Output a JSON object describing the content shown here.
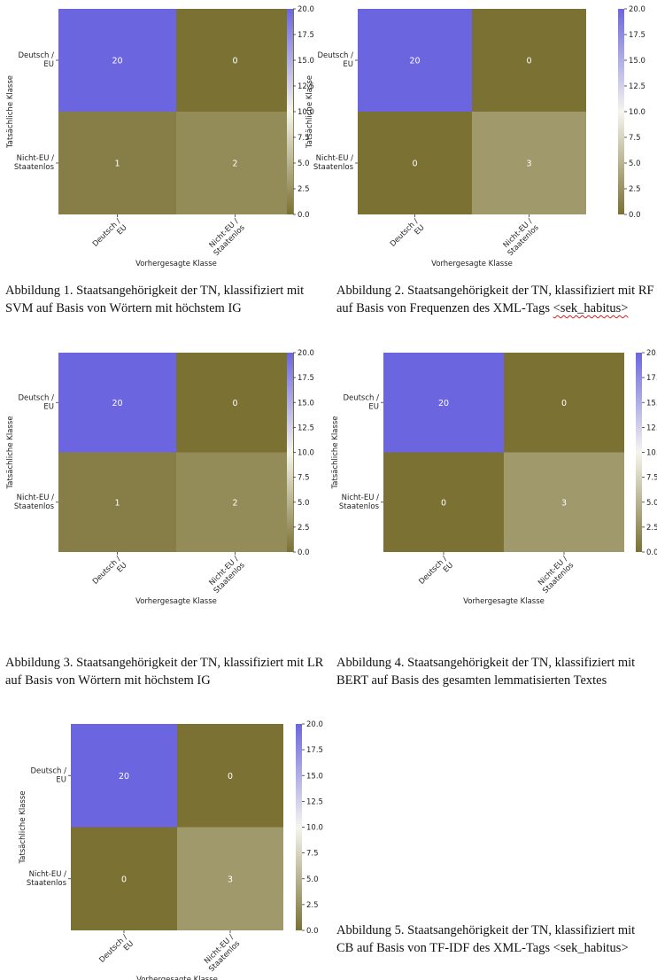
{
  "chart_data": [
    {
      "type": "heatmap",
      "title": "",
      "xlabel": "Vorhergesagte Klasse",
      "ylabel": "Tatsächliche Klasse",
      "x_categories": [
        [
          "Deutsch /",
          "EU"
        ],
        [
          "Nicht-EU /",
          "Staatenlos"
        ]
      ],
      "y_categories": [
        [
          "Deutsch /",
          "EU"
        ],
        [
          "Nicht-EU /",
          "Staatenlos"
        ]
      ],
      "values": [
        [
          20,
          0
        ],
        [
          1,
          2
        ]
      ],
      "colorbar": {
        "range": [
          0,
          20
        ],
        "ticks": [
          "0.0",
          "2.5",
          "5.0",
          "7.5",
          "10.0",
          "12.5",
          "15.0",
          "17.5",
          "20.0"
        ]
      }
    },
    {
      "type": "heatmap",
      "title": "",
      "xlabel": "Vorhergesagte Klasse",
      "ylabel": "Tatsächliche Klasse",
      "x_categories": [
        [
          "Deutsch /",
          "EU"
        ],
        [
          "Nicht-EU /",
          "Staatenlos"
        ]
      ],
      "y_categories": [
        [
          "Deutsch /",
          "EU"
        ],
        [
          "Nicht-EU /",
          "Staatenlos"
        ]
      ],
      "values": [
        [
          20,
          0
        ],
        [
          0,
          3
        ]
      ],
      "colorbar": {
        "range": [
          0,
          20
        ],
        "ticks": [
          "0.0",
          "2.5",
          "5.0",
          "7.5",
          "10.0",
          "12.5",
          "15.0",
          "17.5",
          "20.0"
        ]
      }
    },
    {
      "type": "heatmap",
      "title": "",
      "xlabel": "Vorhergesagte Klasse",
      "ylabel": "Tatsächliche Klasse",
      "x_categories": [
        [
          "Deutsch /",
          "EU"
        ],
        [
          "Nicht-EU /",
          "Staatenlos"
        ]
      ],
      "y_categories": [
        [
          "Deutsch /",
          "EU"
        ],
        [
          "Nicht-EU /",
          "Staatenlos"
        ]
      ],
      "values": [
        [
          20,
          0
        ],
        [
          1,
          2
        ]
      ],
      "colorbar": {
        "range": [
          0,
          20
        ],
        "ticks": [
          "0.0",
          "2.5",
          "5.0",
          "7.5",
          "10.0",
          "12.5",
          "15.0",
          "17.5",
          "20.0"
        ]
      }
    },
    {
      "type": "heatmap",
      "title": "",
      "xlabel": "Vorhergesagte Klasse",
      "ylabel": "Tatsächliche Klasse",
      "x_categories": [
        [
          "Deutsch /",
          "EU"
        ],
        [
          "Nicht-EU /",
          "Staatenlos"
        ]
      ],
      "y_categories": [
        [
          "Deutsch /",
          "EU"
        ],
        [
          "Nicht-EU /",
          "Staatenlos"
        ]
      ],
      "values": [
        [
          20,
          0
        ],
        [
          0,
          3
        ]
      ],
      "colorbar": {
        "range": [
          0,
          20
        ],
        "ticks": [
          "0.0",
          "2.5",
          "5.0",
          "7.5",
          "10.0",
          "12.5",
          "15.0",
          "17.5",
          "20.0"
        ]
      }
    },
    {
      "type": "heatmap",
      "title": "",
      "xlabel": "Vorhergesagte Klasse",
      "ylabel": "Tatsächliche Klasse",
      "x_categories": [
        [
          "Deutsch /",
          "EU"
        ],
        [
          "Nicht-EU /",
          "Staatenlos"
        ]
      ],
      "y_categories": [
        [
          "Deutsch /",
          "EU"
        ],
        [
          "Nicht-EU /",
          "Staatenlos"
        ]
      ],
      "values": [
        [
          20,
          0
        ],
        [
          0,
          3
        ]
      ],
      "colorbar": {
        "range": [
          0,
          20
        ],
        "ticks": [
          "0.0",
          "2.5",
          "5.0",
          "7.5",
          "10.0",
          "12.5",
          "15.0",
          "17.5",
          "20.0"
        ]
      }
    }
  ],
  "colors": {
    "low": "#7a7133",
    "mid": "#f6f5ee",
    "high": "#6b66e0",
    "text_dark_cell": "#e8e6d6",
    "text_light_cell": "#ffffff",
    "spellcheck_underline": "#d21f1f"
  },
  "captions": [
    {
      "text": "Abbildung 1. Staatsangehörigkeit der TN, klassifiziert mit SVM auf Basis von Wörtern mit höchstem IG"
    },
    {
      "text": "Abbildung 2. Staatsangehörigkeit der TN, klassifiziert mit RF auf Basis von Frequenzen des XML-Tags ",
      "underlined": "<sek_habitus>"
    },
    {
      "text": "Abbildung 3. Staatsangehörigkeit der TN, klassifiziert mit LR auf Basis von Wörtern mit höchstem IG"
    },
    {
      "text": "Abbildung 4. Staatsangehörigkeit der TN, klassifiziert mit BERT auf Basis des gesamten lemmatisierten Textes"
    },
    {
      "text": "Abbildung 5. Staatsangehörigkeit der TN, klassifiziert mit CB auf Basis von TF-IDF des XML-Tags <sek_habitus>"
    }
  ]
}
